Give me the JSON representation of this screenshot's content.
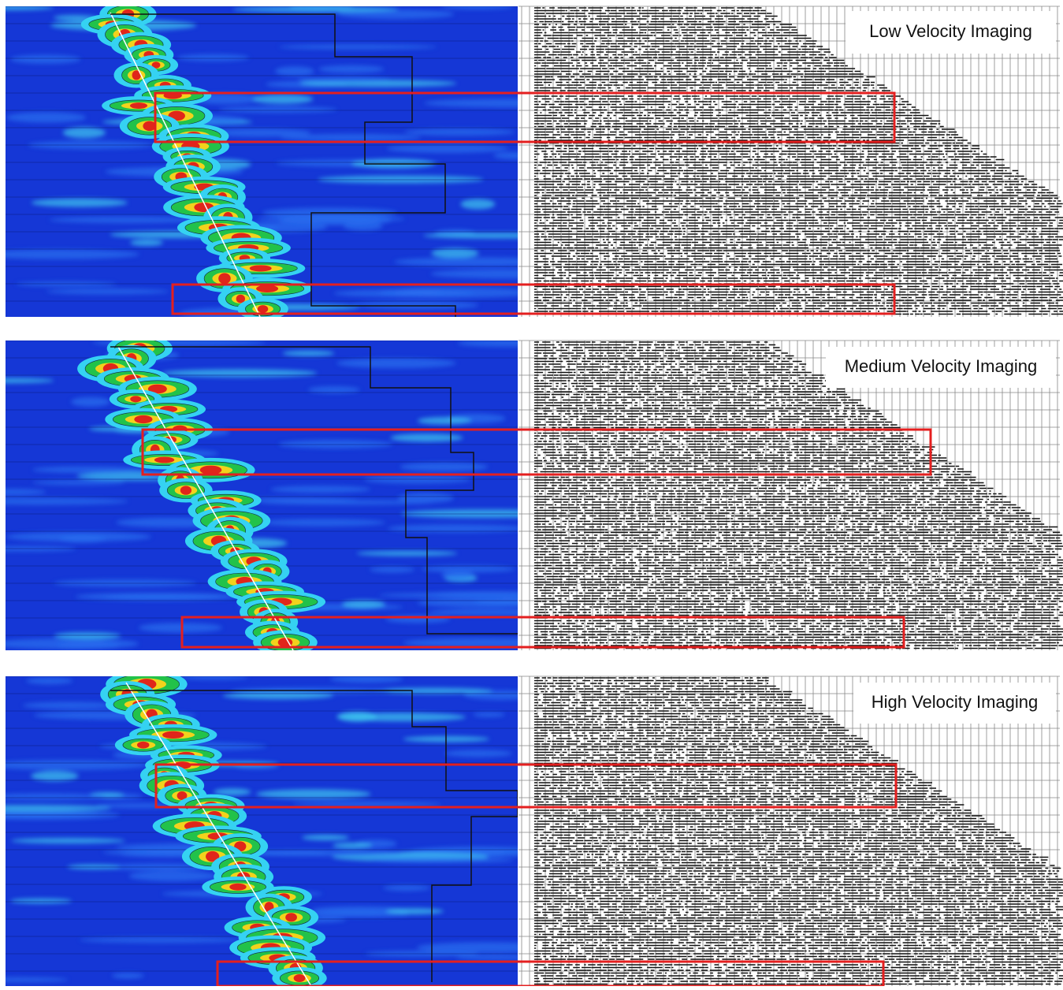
{
  "panels": [
    {
      "label": "Low Velocity Imaging"
    },
    {
      "label": "Medium Velocity Imaging"
    },
    {
      "label": "High Velocity Imaging"
    }
  ]
}
